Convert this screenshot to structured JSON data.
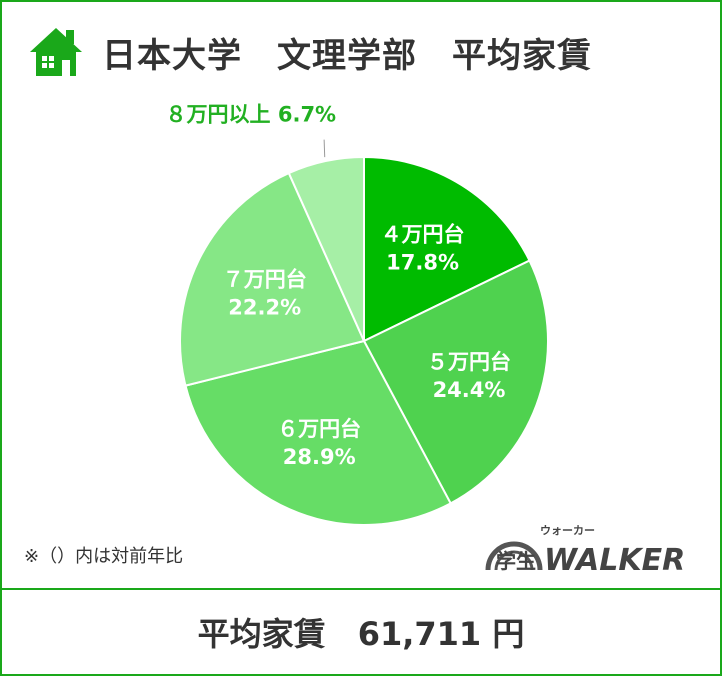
{
  "title": "日本大学　文理学部　平均家賃",
  "note": "※（）内は対前年比",
  "footer": {
    "label": "平均家賃",
    "value": "61,711 円"
  },
  "logo": {
    "kanji": "学生",
    "word": "WALKER",
    "ruby": "ウォーカー"
  },
  "colors": {
    "border": "#1aa81a",
    "icon": "#1aa81a",
    "outside_label": "#22b022"
  },
  "icons": [
    "house-icon"
  ],
  "chart_data": {
    "type": "pie",
    "start_angle_deg": 0,
    "direction": "clockwise",
    "slices": [
      {
        "label": "４万円台",
        "value": 17.8,
        "value_label": "17.8%",
        "color": "#00bb00",
        "label_position": "inside"
      },
      {
        "label": "５万円台",
        "value": 24.4,
        "value_label": "24.4%",
        "color": "#4fd24f",
        "label_position": "inside"
      },
      {
        "label": "６万円台",
        "value": 28.9,
        "value_label": "28.9%",
        "color": "#66dd66",
        "label_position": "inside"
      },
      {
        "label": "７万円台",
        "value": 22.2,
        "value_label": "22.2%",
        "color": "#86e786",
        "label_position": "inside"
      },
      {
        "label": "８万円以上",
        "value": 6.7,
        "value_label": "6.7%",
        "color": "#a6efa6",
        "label_position": "outside"
      }
    ]
  }
}
